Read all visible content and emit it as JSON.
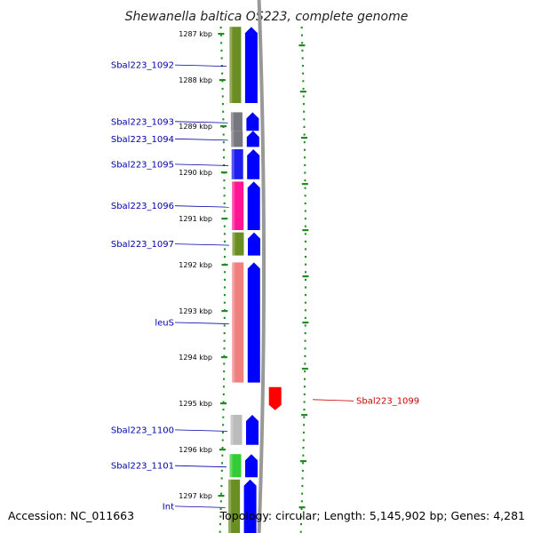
{
  "title": "Shewanella baltica OS223, complete genome",
  "footer": {
    "accession": "Accession: NC_011663",
    "topology": "Topology: circular; Length: 5,145,902 bp; Genes: 4,281"
  },
  "kbp_ticks": [
    {
      "label": "1287 kbp",
      "kbp": 1287
    },
    {
      "label": "1288 kbp",
      "kbp": 1288
    },
    {
      "label": "1289 kbp",
      "kbp": 1289
    },
    {
      "label": "1290 kbp",
      "kbp": 1290
    },
    {
      "label": "1291 kbp",
      "kbp": 1291
    },
    {
      "label": "1292 kbp",
      "kbp": 1292
    },
    {
      "label": "1293 kbp",
      "kbp": 1293
    },
    {
      "label": "1294 kbp",
      "kbp": 1294
    },
    {
      "label": "1295 kbp",
      "kbp": 1295
    },
    {
      "label": "1296 kbp",
      "kbp": 1296
    },
    {
      "label": "1297 kbp",
      "kbp": 1297
    }
  ],
  "genes": [
    {
      "label": "Sbal223_1092",
      "start": 1286.85,
      "end": 1288.5,
      "strand": "+",
      "color": "#6b8e23"
    },
    {
      "label": "Sbal223_1093",
      "start": 1288.7,
      "end": 1289.1,
      "strand": "+",
      "color": "#77777f"
    },
    {
      "label": "Sbal223_1094",
      "start": 1289.1,
      "end": 1289.45,
      "strand": "+",
      "color": "#77777f"
    },
    {
      "label": "Sbal223_1095",
      "start": 1289.5,
      "end": 1290.15,
      "strand": "+",
      "color": "#1e1ef0"
    },
    {
      "label": "Sbal223_1096",
      "start": 1290.2,
      "end": 1291.25,
      "strand": "+",
      "color": "#ff1493"
    },
    {
      "label": "Sbal223_1097",
      "start": 1291.3,
      "end": 1291.8,
      "strand": "+",
      "color": "#6b8e23"
    },
    {
      "label": "leuS",
      "start": 1291.95,
      "end": 1294.55,
      "strand": "+",
      "color": "#f08080"
    },
    {
      "label": "Sbal223_1099",
      "start": 1294.65,
      "end": 1295.15,
      "strand": "-",
      "color": "#ff0000"
    },
    {
      "label": "Sbal223_1100",
      "start": 1295.25,
      "end": 1295.9,
      "strand": "+",
      "color": "#bbbbbb"
    },
    {
      "label": "Sbal223_1101",
      "start": 1296.1,
      "end": 1296.6,
      "strand": "+",
      "color": "#32cd32"
    },
    {
      "label": "Int",
      "start": 1296.65,
      "end": 1297.9,
      "strand": "+",
      "color": "#6b8e23"
    }
  ],
  "colors": {
    "label_forward": "#0000aa",
    "label_reverse": "#cc0000",
    "cds_forward": "#0000ff",
    "backbone": "#999999",
    "tick_marks": "#228b22"
  }
}
